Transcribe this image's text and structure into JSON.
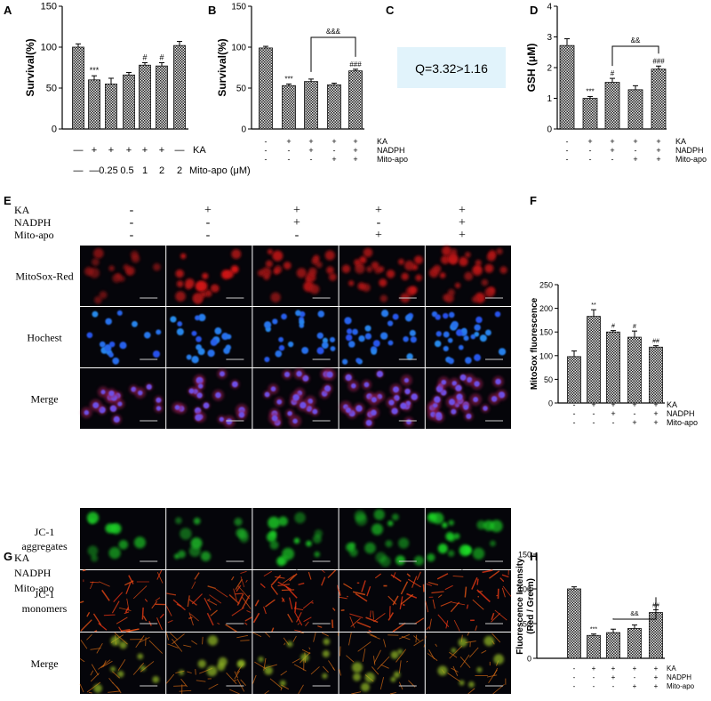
{
  "panels": {
    "A": {
      "letter": "A",
      "ylabel": "Survival(%)",
      "yticks": [
        "0",
        "50",
        "100",
        "150"
      ],
      "ylim": [
        0,
        150
      ],
      "bars": [
        {
          "v": 100,
          "e": 4,
          "s": ""
        },
        {
          "v": 60,
          "e": 5,
          "s": "***"
        },
        {
          "v": 55,
          "e": 7,
          "s": ""
        },
        {
          "v": 66,
          "e": 3,
          "s": ""
        },
        {
          "v": 78,
          "e": 3,
          "s": "#"
        },
        {
          "v": 77,
          "e": 4,
          "s": "#"
        },
        {
          "v": 102,
          "e": 5,
          "s": ""
        }
      ],
      "row1": [
        "—",
        "+",
        "+",
        "+",
        "+",
        "+",
        "—"
      ],
      "row1_label": "KA",
      "row2": [
        "—",
        "—",
        "0.25",
        "0.5",
        "1",
        "2",
        "2"
      ],
      "row2_label": "Mito-apo (μM)"
    },
    "B": {
      "letter": "B",
      "ylabel": "Survival(%)",
      "yticks": [
        "0",
        "50",
        "100",
        "150"
      ],
      "ylim": [
        0,
        150
      ],
      "bars": [
        {
          "v": 99,
          "e": 2,
          "s": ""
        },
        {
          "v": 53,
          "e": 2,
          "s": "***"
        },
        {
          "v": 58,
          "e": 3,
          "s": ""
        },
        {
          "v": 54,
          "e": 2,
          "s": ""
        },
        {
          "v": 71,
          "e": 2,
          "s": "###"
        }
      ],
      "bracket": "&&&",
      "rows": [
        {
          "label": "KA",
          "vals": [
            "-",
            "+",
            "+",
            "+",
            "+"
          ]
        },
        {
          "label": "NADPH",
          "vals": [
            "-",
            "-",
            "+",
            "-",
            "+"
          ]
        },
        {
          "label": "Mito-apo",
          "vals": [
            "-",
            "-",
            "-",
            "+",
            "+"
          ]
        }
      ]
    },
    "C": {
      "letter": "C",
      "text": "Q=3.32>1.16"
    },
    "D": {
      "letter": "D",
      "ylabel": "GSH (μM)",
      "yticks": [
        "0",
        "1",
        "2",
        "3",
        "4"
      ],
      "ylim": [
        0,
        4
      ],
      "bars": [
        {
          "v": 2.72,
          "e": 0.22,
          "s": ""
        },
        {
          "v": 1.0,
          "e": 0.06,
          "s": "***"
        },
        {
          "v": 1.52,
          "e": 0.13,
          "s": "#"
        },
        {
          "v": 1.28,
          "e": 0.13,
          "s": ""
        },
        {
          "v": 1.95,
          "e": 0.1,
          "s": "###"
        }
      ],
      "bracket": "&&",
      "rows": [
        {
          "label": "KA",
          "vals": [
            "-",
            "+",
            "+",
            "+",
            "+"
          ]
        },
        {
          "label": "NADPH",
          "vals": [
            "-",
            "-",
            "+",
            "-",
            "+"
          ]
        },
        {
          "label": "Mito-apo",
          "vals": [
            "-",
            "-",
            "-",
            "+",
            "+"
          ]
        }
      ]
    },
    "E": {
      "letter": "E",
      "rowlabels": [
        "KA",
        "NADPH",
        "Mito-apo"
      ],
      "cols": [
        [
          "-",
          "-",
          "-"
        ],
        [
          "+",
          "-",
          "-"
        ],
        [
          "+",
          "+",
          "-"
        ],
        [
          "+",
          "-",
          "+"
        ],
        [
          "+",
          "+",
          "+"
        ]
      ],
      "imgrows": [
        "MitoSox-Red",
        "Hochest",
        "Merge"
      ]
    },
    "F": {
      "letter": "F",
      "ylabel": "MitoSox fluorescence",
      "yticks": [
        "0",
        "50",
        "100",
        "150",
        "200",
        "250"
      ],
      "ylim": [
        0,
        250
      ],
      "bars": [
        {
          "v": 98,
          "e": 12,
          "s": ""
        },
        {
          "v": 183,
          "e": 14,
          "s": "**"
        },
        {
          "v": 150,
          "e": 3,
          "s": "#"
        },
        {
          "v": 139,
          "e": 13,
          "s": "#"
        },
        {
          "v": 118,
          "e": 3,
          "s": "##"
        }
      ],
      "rows": [
        {
          "label": "KA",
          "vals": [
            "-",
            "+",
            "+",
            "+",
            "+"
          ]
        },
        {
          "label": "NADPH",
          "vals": [
            "-",
            "-",
            "+",
            "-",
            "+"
          ]
        },
        {
          "label": "Mito-apo",
          "vals": [
            "-",
            "-",
            "-",
            "+",
            "+"
          ]
        }
      ]
    },
    "G": {
      "letter": "G",
      "rowlabels": [
        "KA",
        "NADPH",
        "Mito-apo"
      ],
      "cols": [
        [
          "-",
          "-",
          "-"
        ],
        [
          "+",
          "-",
          "-"
        ],
        [
          "+",
          "+",
          "-"
        ],
        [
          "+",
          "-",
          "+"
        ],
        [
          "+",
          "+",
          "+"
        ]
      ],
      "imgrows": [
        "JC-1\naggregates",
        "JC-1\nmonomers",
        "Merge"
      ]
    },
    "H": {
      "letter": "H",
      "ylabel": "Fluorescence Intensity",
      "ylabel2": "(Red / Green)",
      "yticks": [
        "0",
        "50",
        "100",
        "150"
      ],
      "ylim": [
        0,
        150
      ],
      "bars": [
        {
          "v": 100,
          "e": 3,
          "s": ""
        },
        {
          "v": 33,
          "e": 2,
          "s": "***"
        },
        {
          "v": 37,
          "e": 5,
          "s": ""
        },
        {
          "v": 43,
          "e": 5,
          "s": ""
        },
        {
          "v": 66,
          "e": 4,
          "s": "##"
        }
      ],
      "bracket": "&&",
      "rows": [
        {
          "label": "KA",
          "vals": [
            "-",
            "+",
            "+",
            "+",
            "+"
          ]
        },
        {
          "label": "NADPH",
          "vals": [
            "-",
            "-",
            "+",
            "-",
            "+"
          ]
        },
        {
          "label": "Mito-apo",
          "vals": [
            "-",
            "-",
            "-",
            "+",
            "+"
          ]
        }
      ]
    }
  },
  "chart_data": [
    {
      "panel": "A",
      "type": "bar",
      "categories": [
        "1",
        "2",
        "3",
        "4",
        "5",
        "6",
        "7"
      ],
      "values": [
        100,
        60,
        55,
        66,
        78,
        77,
        102
      ],
      "ylabel": "Survival(%)",
      "ylim": [
        0,
        150
      ]
    },
    {
      "panel": "B",
      "type": "bar",
      "categories": [
        "1",
        "2",
        "3",
        "4",
        "5"
      ],
      "values": [
        99,
        53,
        58,
        54,
        71
      ],
      "ylabel": "Survival(%)",
      "ylim": [
        0,
        150
      ]
    },
    {
      "panel": "D",
      "type": "bar",
      "categories": [
        "1",
        "2",
        "3",
        "4",
        "5"
      ],
      "values": [
        2.72,
        1.0,
        1.52,
        1.28,
        1.95
      ],
      "ylabel": "GSH (μM)",
      "ylim": [
        0,
        4
      ]
    },
    {
      "panel": "F",
      "type": "bar",
      "categories": [
        "1",
        "2",
        "3",
        "4",
        "5"
      ],
      "values": [
        98,
        183,
        150,
        139,
        118
      ],
      "ylabel": "MitoSox fluorescence",
      "ylim": [
        0,
        250
      ]
    },
    {
      "panel": "H",
      "type": "bar",
      "categories": [
        "1",
        "2",
        "3",
        "4",
        "5"
      ],
      "values": [
        100,
        33,
        37,
        43,
        66
      ],
      "ylabel": "Fluorescence Intensity (Red / Green)",
      "ylim": [
        0,
        150
      ]
    }
  ]
}
